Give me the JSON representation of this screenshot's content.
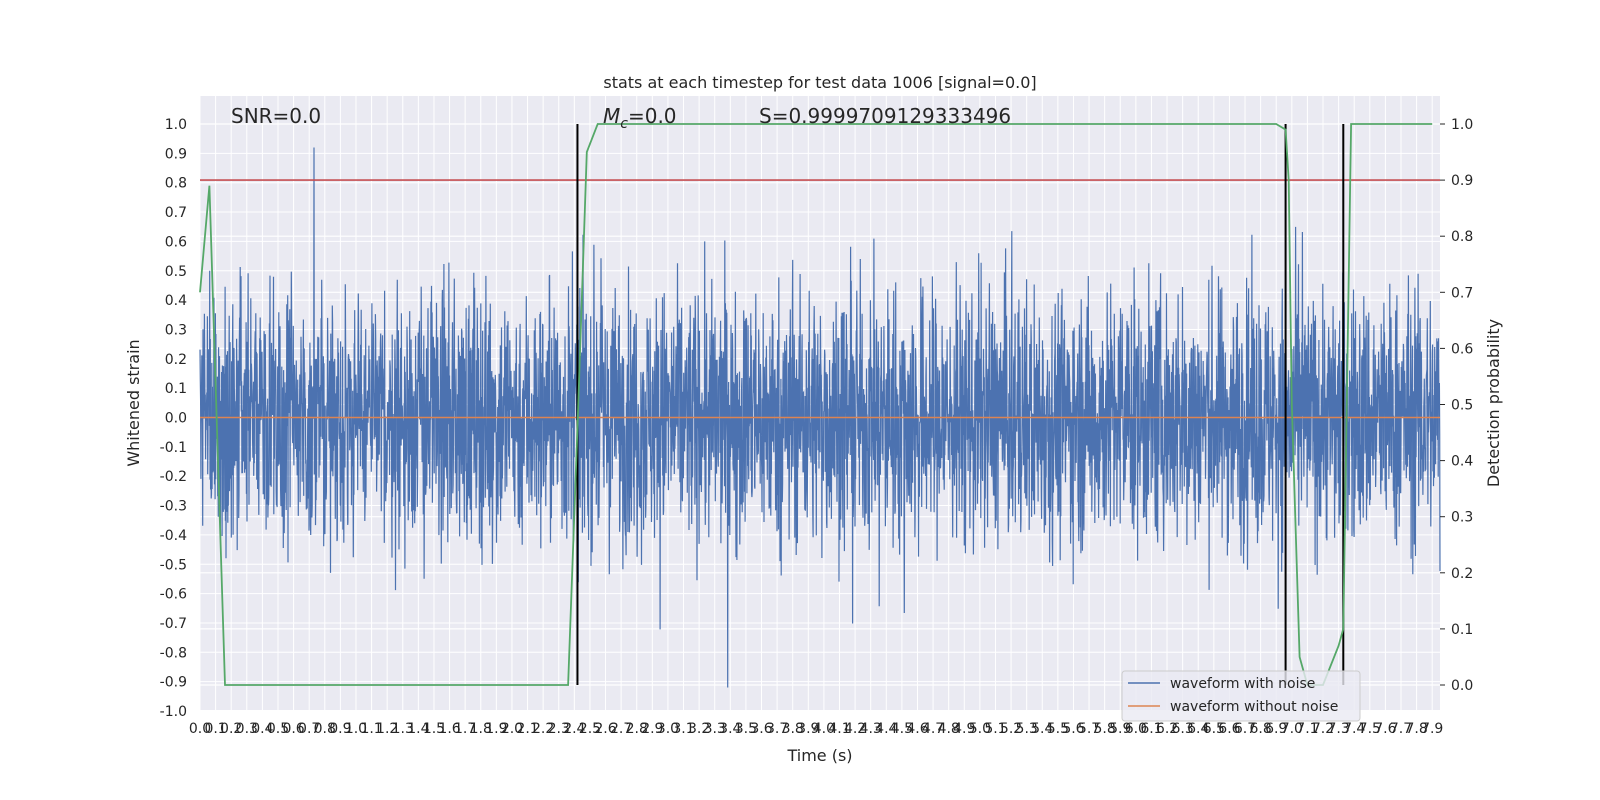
{
  "chart_data": {
    "type": "line",
    "title": "stats at each timestep for test data 1006 [signal=0.0]",
    "xlabel": "Time (s)",
    "ylabel": "Whitened strain",
    "y2label": "Detection probability",
    "xlim": [
      0.0,
      7.95
    ],
    "ylim": [
      -1.0,
      1.0
    ],
    "y2lim": [
      -0.05,
      1.05
    ],
    "x_tick_step": 0.1,
    "y_ticks": [
      "-1.0",
      "-0.9",
      "-0.8",
      "-0.7",
      "-0.6",
      "-0.5",
      "-0.4",
      "-0.3",
      "-0.2",
      "-0.1",
      "0.0",
      "0.1",
      "0.2",
      "0.3",
      "0.4",
      "0.5",
      "0.6",
      "0.7",
      "0.8",
      "0.9",
      "1.0"
    ],
    "y2_ticks": [
      "0.0",
      "0.1",
      "0.2",
      "0.3",
      "0.4",
      "0.5",
      "0.6",
      "0.7",
      "0.8",
      "0.9",
      "1.0"
    ],
    "annotations": {
      "snr": "SNR=0.0",
      "mc_symbol": "M",
      "mc_sub": "c",
      "mc_rest": "=0.0",
      "s": "S=0.9999709129333496"
    },
    "threshold_line": {
      "axis": "right",
      "value": 0.9,
      "color": "#c44e52"
    },
    "vertical_lines": [
      2.42,
      6.96,
      7.33
    ],
    "grid": true,
    "legend_position": "lower-right",
    "series": [
      {
        "name": "waveform with noise",
        "color": "#4c72b0",
        "axis": "left",
        "description_envelope": {
          "typical_amplitude": 0.35,
          "max_amplitude": 0.92,
          "mean": 0.0
        }
      },
      {
        "name": "waveform without noise",
        "color": "#dd8452",
        "axis": "left",
        "constant": 0.0
      },
      {
        "name": "",
        "color": "#55a868",
        "axis": "right",
        "x": [
          0.0,
          0.06,
          0.16,
          0.2,
          0.5,
          1.5,
          2.0,
          2.3,
          2.36,
          2.42,
          2.48,
          2.55,
          3.0,
          4.0,
          5.0,
          6.0,
          6.5,
          6.9,
          6.96,
          6.98,
          7.0,
          7.05,
          7.1,
          7.2,
          7.3,
          7.33,
          7.38,
          7.5,
          7.9
        ],
        "values": [
          0.7,
          0.89,
          0.0,
          0.0,
          0.0,
          0.0,
          0.0,
          0.0,
          0.0,
          0.46,
          0.95,
          1.0,
          1.0,
          1.0,
          1.0,
          1.0,
          1.0,
          1.0,
          0.99,
          0.9,
          0.5,
          0.05,
          0.0,
          0.0,
          0.07,
          0.1,
          1.0,
          1.0,
          1.0
        ]
      }
    ]
  }
}
